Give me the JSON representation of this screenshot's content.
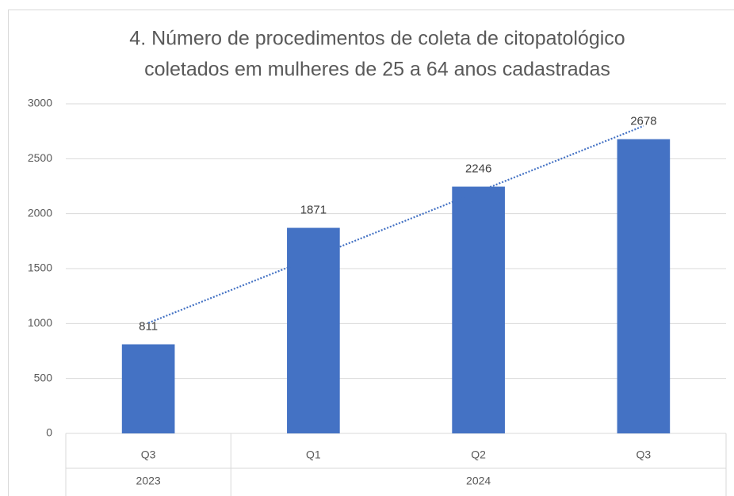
{
  "chart_data": {
    "type": "bar",
    "title": [
      "4. Número de procedimentos de coleta de citopatológico",
      "coletados em mulheres de 25 a 64 anos cadastradas"
    ],
    "categories": [
      "Q3",
      "Q1",
      "Q2",
      "Q3"
    ],
    "groups": [
      {
        "label": "2023",
        "span": 1
      },
      {
        "label": "2024",
        "span": 3
      }
    ],
    "values": [
      811,
      1871,
      2246,
      2678
    ],
    "color": "#4472c4",
    "trendline": {
      "type": "linear",
      "color": "#4472c4"
    },
    "ylim": [
      0,
      3000
    ],
    "yticks": [
      0,
      500,
      1000,
      1500,
      2000,
      2500,
      3000
    ],
    "grid": true,
    "data_labels": true
  }
}
